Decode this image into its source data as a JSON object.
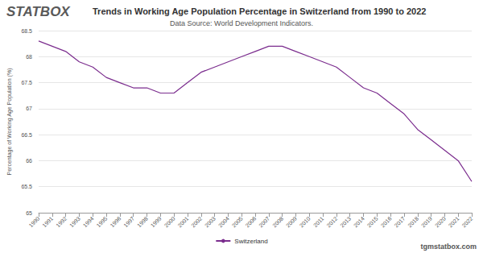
{
  "chart_data": {
    "type": "line",
    "title": "Trends in Working Age Population Percentage in Switzerland from 1990 to 2022",
    "subtitle": "Data Source: World Development Indicators.",
    "y_label": "Percentage of Working Age Population (%)",
    "annotations": [
      "STATBOX",
      "tgmstatbox.com"
    ],
    "categories": [
      "1990",
      "1991",
      "1992",
      "1993",
      "1994",
      "1995",
      "1996",
      "1997",
      "1998",
      "1999",
      "2000",
      "2001",
      "2002",
      "2003",
      "2004",
      "2005",
      "2006",
      "2007",
      "2008",
      "2009",
      "2010",
      "2011",
      "2012",
      "2013",
      "2014",
      "2015",
      "2016",
      "2017",
      "2018",
      "2019",
      "2020",
      "2021",
      "2022"
    ],
    "series": [
      {
        "name": "Switzerland",
        "color": "#7b2d8e",
        "values": [
          68.3,
          68.2,
          68.1,
          67.9,
          67.8,
          67.6,
          67.5,
          67.4,
          67.4,
          67.3,
          67.3,
          67.5,
          67.7,
          67.8,
          67.9,
          68.0,
          68.1,
          68.2,
          68.2,
          68.1,
          68.0,
          67.9,
          67.8,
          67.6,
          67.4,
          67.3,
          67.1,
          66.9,
          66.6,
          66.4,
          66.2,
          66.0,
          65.6
        ]
      }
    ],
    "ylim": [
      65,
      68.5
    ],
    "yticks": [
      65,
      65.5,
      66,
      66.5,
      67,
      67.5,
      68,
      68.5
    ],
    "grid": true,
    "legend": "bottom"
  }
}
